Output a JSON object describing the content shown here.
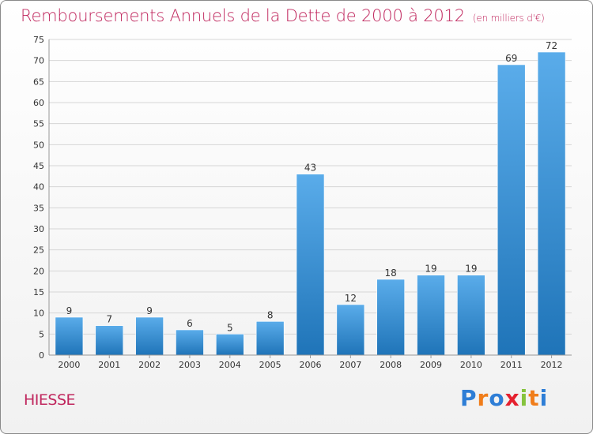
{
  "title": "Remboursements Annuels de la Dette de 2000 à 2012",
  "subtitle": "(en milliers d'€)",
  "commune": "HIESSE",
  "logo": {
    "letters": [
      "P",
      "r",
      "o",
      "x",
      "i",
      "t",
      "i"
    ],
    "colors": [
      "#2e7ed6",
      "#f07d1a",
      "#2e7ed6",
      "#e5202e",
      "#86c33e",
      "#f07d1a",
      "#2e7ed6"
    ]
  },
  "colors": {
    "accent": "#c0275e",
    "bar_light": "#5aacea",
    "bar_dark": "#1f74b8",
    "grid": "#d6d6d6",
    "axis_text": "#333333"
  },
  "chart_data": {
    "type": "bar",
    "categories": [
      "2000",
      "2001",
      "2002",
      "2003",
      "2004",
      "2005",
      "2006",
      "2007",
      "2008",
      "2009",
      "2010",
      "2011",
      "2012"
    ],
    "values": [
      9,
      7,
      9,
      6,
      5,
      8,
      43,
      12,
      18,
      19,
      19,
      69,
      72
    ],
    "ylim": [
      0,
      75
    ],
    "yticks": [
      0,
      5,
      10,
      15,
      20,
      25,
      30,
      35,
      40,
      45,
      50,
      55,
      60,
      65,
      70,
      75
    ],
    "grid": true,
    "data_labels": true
  }
}
